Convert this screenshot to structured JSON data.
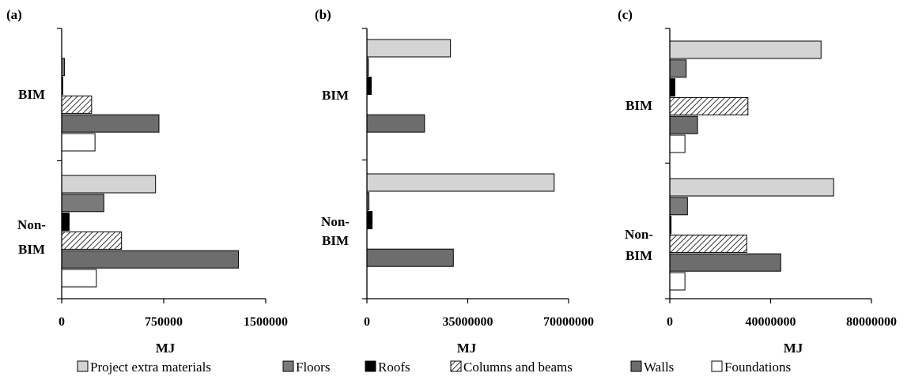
{
  "colors": {
    "Project extra materials": "#d4d4d4",
    "Floors": "#7a7a7a",
    "Roofs": "#000000",
    "Columns and beams": "hatch",
    "Walls": "#6d6d6d",
    "Foundations": "#ffffff"
  },
  "chart_data": [
    {
      "type": "bar",
      "orientation": "horizontal",
      "panel_label": "(a)",
      "xlabel": "MJ",
      "xlim": [
        0,
        1500000
      ],
      "xticks": [
        0,
        750000,
        1500000
      ],
      "xtick_labels": [
        "0",
        "750000",
        "1500000"
      ],
      "groups": [
        "BIM",
        "Non-BIM"
      ],
      "series": [
        {
          "name": "Project extra materials",
          "values": [
            0,
            690000
          ]
        },
        {
          "name": "Floors",
          "values": [
            20000,
            310000
          ]
        },
        {
          "name": "Roofs",
          "values": [
            8000,
            55000
          ]
        },
        {
          "name": "Columns and beams",
          "values": [
            220000,
            440000
          ]
        },
        {
          "name": "Walls",
          "values": [
            715000,
            1300000
          ]
        },
        {
          "name": "Foundations",
          "values": [
            245000,
            255000
          ]
        }
      ]
    },
    {
      "type": "bar",
      "orientation": "horizontal",
      "panel_label": "(b)",
      "xlabel": "MJ",
      "xlim": [
        0,
        70000000
      ],
      "xticks": [
        0,
        35000000,
        70000000
      ],
      "xtick_labels": [
        "0",
        "35000000",
        "70000000"
      ],
      "groups": [
        "BIM",
        "Non-BIM"
      ],
      "series": [
        {
          "name": "Project extra materials",
          "values": [
            29000000,
            65000000
          ]
        },
        {
          "name": "Floors",
          "values": [
            500000,
            700000
          ]
        },
        {
          "name": "Roofs",
          "values": [
            1500000,
            1800000
          ]
        },
        {
          "name": "Columns and beams",
          "values": [
            0,
            0
          ]
        },
        {
          "name": "Walls",
          "values": [
            20000000,
            30000000
          ]
        },
        {
          "name": "Foundations",
          "values": [
            0,
            0
          ]
        }
      ]
    },
    {
      "type": "bar",
      "orientation": "horizontal",
      "panel_label": "(c)",
      "xlabel": "MJ",
      "xlim": [
        0,
        80000000
      ],
      "xticks": [
        0,
        40000000,
        80000000
      ],
      "xtick_labels": [
        "0",
        "40000000",
        "80000000"
      ],
      "groups": [
        "BIM",
        "Non-BIM"
      ],
      "series": [
        {
          "name": "Project extra materials",
          "values": [
            60000000,
            65000000
          ]
        },
        {
          "name": "Floors",
          "values": [
            6500000,
            7000000
          ]
        },
        {
          "name": "Roofs",
          "values": [
            2000000,
            500000
          ]
        },
        {
          "name": "Columns and beams",
          "values": [
            31000000,
            30500000
          ]
        },
        {
          "name": "Walls",
          "values": [
            11000000,
            44000000
          ]
        },
        {
          "name": "Foundations",
          "values": [
            6000000,
            6000000
          ]
        }
      ]
    }
  ],
  "legend": {
    "items": [
      "Project extra materials",
      "Floors",
      "Roofs",
      "Columns and beams",
      "Walls",
      "Foundations"
    ]
  }
}
